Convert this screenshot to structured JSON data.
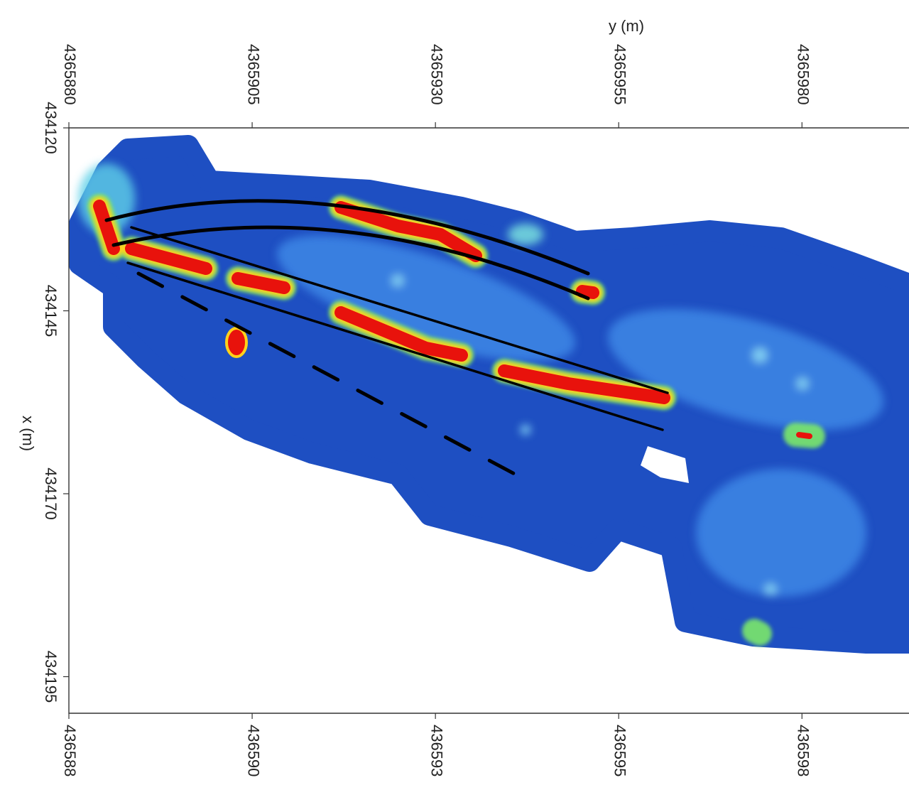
{
  "chart_data": {
    "type": "heatmap",
    "xlabel": "y (m)",
    "ylabel": "x (m)",
    "xlim": [
      4365880,
      4365994.6
    ],
    "xticks": [
      4365880,
      4365905,
      4365930,
      4365955,
      4365980
    ],
    "ylim": [
      434120,
      434200
    ],
    "yticks": [
      434120,
      434145,
      434170,
      434195
    ],
    "x2lim": [
      436588,
      436599.46
    ],
    "x2ticks": [
      {
        "value": 436588,
        "label": "436588"
      },
      {
        "value": 436590.5,
        "label": "436590"
      },
      {
        "value": 436593,
        "label": "436593"
      },
      {
        "value": 436595.5,
        "label": "436595"
      },
      {
        "value": 436598,
        "label": "436598"
      }
    ]
  }
}
